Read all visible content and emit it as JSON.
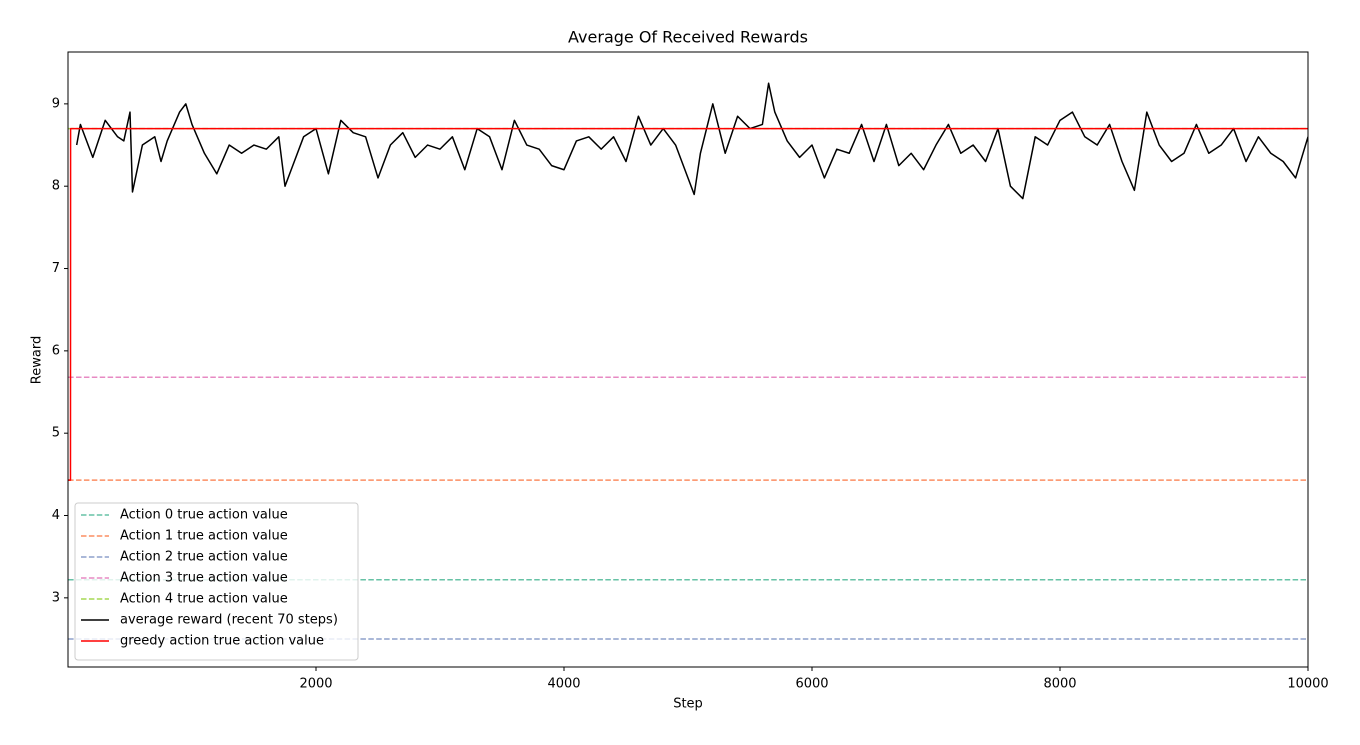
{
  "chart_data": {
    "type": "line",
    "title": "Average Of Received Rewards",
    "x_label": "Step",
    "y_label": "Reward",
    "xlim": [
      0,
      10000
    ],
    "ylim": [
      2.16,
      9.63
    ],
    "xticks": [
      2000,
      4000,
      6000,
      8000,
      10000
    ],
    "yticks": [
      3,
      4,
      5,
      6,
      7,
      8,
      9
    ],
    "legend": "lower left",
    "series": [
      {
        "name": "Action 0 true action value",
        "color": "#66c2a5",
        "dashed": true,
        "x": [
          1,
          10000
        ],
        "values": [
          3.22,
          3.22
        ]
      },
      {
        "name": "Action 1 true action value",
        "color": "#fc8d62",
        "dashed": true,
        "x": [
          1,
          10000
        ],
        "values": [
          4.43,
          4.43
        ]
      },
      {
        "name": "Action 2 true action value",
        "color": "#8da0cb",
        "dashed": true,
        "x": [
          1,
          10000
        ],
        "values": [
          2.5,
          2.5
        ]
      },
      {
        "name": "Action 3 true action value",
        "color": "#e78ac3",
        "dashed": true,
        "x": [
          1,
          10000
        ],
        "values": [
          5.68,
          5.68
        ]
      },
      {
        "name": "Action 4 true action value",
        "color": "#a6d854",
        "dashed": true,
        "x": [
          1,
          10000
        ],
        "values": [
          8.7,
          8.7
        ]
      },
      {
        "name": "average reward (recent 70 steps)",
        "color": "#000000",
        "dashed": false,
        "x": [
          70,
          100,
          200,
          300,
          400,
          450,
          500,
          520,
          600,
          700,
          750,
          800,
          900,
          950,
          1000,
          1100,
          1200,
          1300,
          1400,
          1500,
          1600,
          1700,
          1750,
          1800,
          1900,
          2000,
          2100,
          2200,
          2300,
          2400,
          2500,
          2600,
          2700,
          2800,
          2900,
          3000,
          3100,
          3200,
          3300,
          3400,
          3500,
          3600,
          3700,
          3800,
          3900,
          4000,
          4100,
          4200,
          4300,
          4400,
          4500,
          4600,
          4700,
          4800,
          4900,
          5000,
          5050,
          5100,
          5200,
          5300,
          5400,
          5500,
          5600,
          5650,
          5700,
          5800,
          5900,
          6000,
          6100,
          6200,
          6300,
          6400,
          6500,
          6600,
          6700,
          6800,
          6900,
          7000,
          7100,
          7200,
          7300,
          7400,
          7500,
          7600,
          7700,
          7800,
          7900,
          8000,
          8100,
          8200,
          8300,
          8400,
          8500,
          8600,
          8700,
          8800,
          8900,
          9000,
          9100,
          9200,
          9300,
          9400,
          9500,
          9600,
          9700,
          9800,
          9900,
          10000
        ],
        "values": [
          8.5,
          8.75,
          8.35,
          8.8,
          8.6,
          8.55,
          8.9,
          7.93,
          8.5,
          8.6,
          8.3,
          8.55,
          8.9,
          9.0,
          8.75,
          8.4,
          8.15,
          8.5,
          8.4,
          8.5,
          8.45,
          8.6,
          8.0,
          8.2,
          8.6,
          8.7,
          8.15,
          8.8,
          8.65,
          8.6,
          8.1,
          8.5,
          8.65,
          8.35,
          8.5,
          8.45,
          8.6,
          8.2,
          8.7,
          8.6,
          8.2,
          8.8,
          8.5,
          8.45,
          8.25,
          8.2,
          8.55,
          8.6,
          8.45,
          8.6,
          8.3,
          8.85,
          8.5,
          8.7,
          8.5,
          8.1,
          7.9,
          8.4,
          9.0,
          8.4,
          8.85,
          8.7,
          8.75,
          9.25,
          8.9,
          8.55,
          8.35,
          8.5,
          8.1,
          8.45,
          8.4,
          8.75,
          8.3,
          8.75,
          8.25,
          8.4,
          8.2,
          8.5,
          8.75,
          8.4,
          8.5,
          8.3,
          8.7,
          8.0,
          7.85,
          8.6,
          8.5,
          8.8,
          8.9,
          8.6,
          8.5,
          8.75,
          8.3,
          7.95,
          8.9,
          8.5,
          8.3,
          8.4,
          8.75,
          8.4,
          8.5,
          8.7,
          8.3,
          8.6,
          8.4,
          8.3,
          8.1,
          8.6
        ]
      },
      {
        "name": "greedy action true action value",
        "color": "#ff0000",
        "dashed": false,
        "x": [
          1,
          20,
          21,
          10000
        ],
        "values": [
          4.43,
          4.43,
          8.7,
          8.7
        ]
      }
    ]
  }
}
